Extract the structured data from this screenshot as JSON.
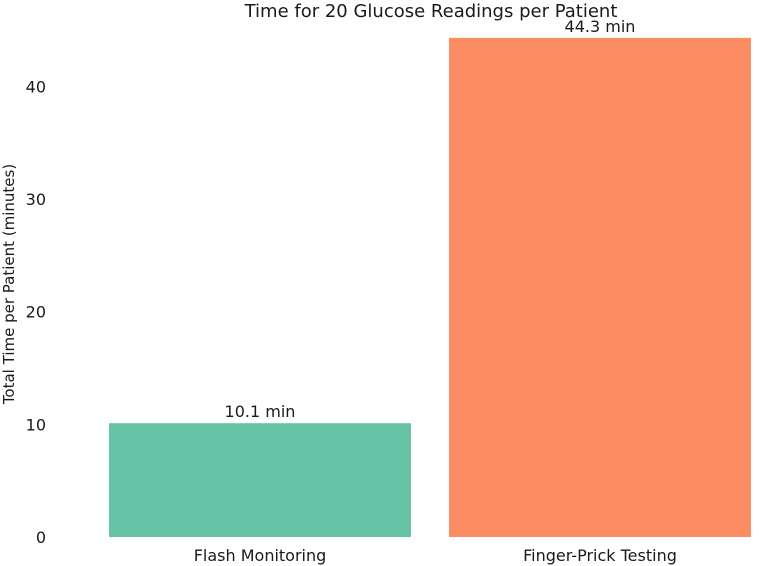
{
  "chart_data": {
    "type": "bar",
    "title": "Time for 20 Glucose Readings per Patient",
    "xlabel": "",
    "ylabel": "Total Time per Patient (minutes)",
    "categories": [
      "Flash Monitoring",
      "Finger-Prick Testing"
    ],
    "values": [
      10.1,
      44.3
    ],
    "data_labels": [
      "10.1 min",
      "44.3 min"
    ],
    "colors": [
      "#66c2a5",
      "#fc8d62"
    ],
    "ylim": [
      0,
      45
    ],
    "yticks": [
      0,
      10,
      20,
      30,
      40
    ],
    "grid": false,
    "legend": "none"
  }
}
